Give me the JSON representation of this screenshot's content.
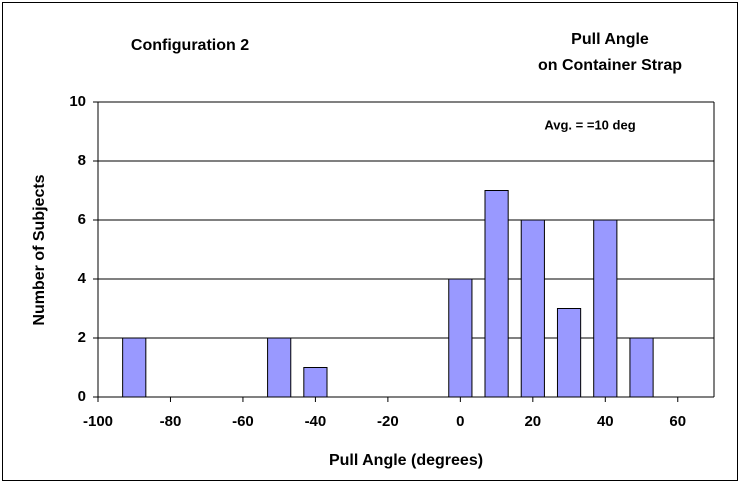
{
  "chart_data": {
    "type": "bar",
    "title": [
      "Pull Angle",
      "on Container Strap"
    ],
    "subtitle": "Configuration 2",
    "annotation": "Avg. = =10 deg",
    "x_label": "Pull Angle (degrees)",
    "y_label": "Number of Subjects",
    "x": [
      -90,
      -50,
      -40,
      0,
      10,
      20,
      30,
      40,
      50
    ],
    "values": [
      2,
      2,
      1,
      4,
      7,
      6,
      3,
      6,
      2
    ],
    "color": "#9999ff",
    "xlim": [
      -100,
      70
    ],
    "xticks": [
      -100,
      -80,
      -60,
      -40,
      -20,
      0,
      20,
      40,
      60
    ],
    "ylim": [
      0,
      10
    ],
    "yticks": [
      0,
      2,
      4,
      6,
      8,
      10
    ],
    "grid": true
  }
}
